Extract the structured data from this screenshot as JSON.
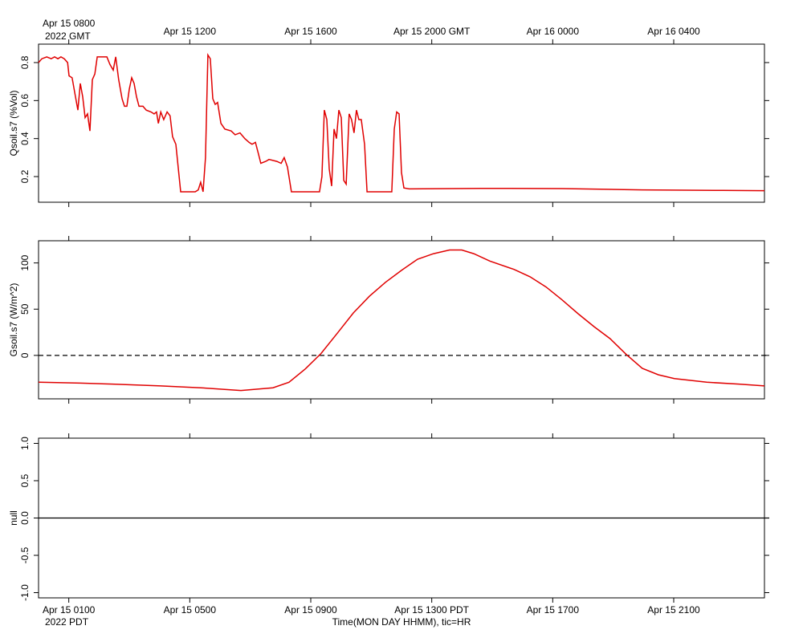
{
  "chart_data": [
    {
      "type": "line",
      "ylabel": "Qsoil.s7 (%Vol)",
      "color": "#e00000",
      "xlim": [
        0,
        24
      ],
      "ylim": [
        0.065,
        0.897
      ],
      "yticks": [
        0.2,
        0.4,
        0.6,
        0.8
      ],
      "xtick_side": "top",
      "x_year": "2022 GMT",
      "xticks": [
        {
          "value": 1,
          "label": "Apr 15 0800"
        },
        {
          "value": 5,
          "label": "Apr 15 1200"
        },
        {
          "value": 9,
          "label": "Apr 15 1600"
        },
        {
          "value": 13,
          "label": "Apr 15 2000 GMT"
        },
        {
          "value": 17,
          "label": "Apr 16 0000"
        },
        {
          "value": 21,
          "label": "Apr 16 0400"
        }
      ],
      "x": [
        0,
        0.11,
        0.27,
        0.42,
        0.53,
        0.64,
        0.74,
        0.85,
        0.96,
        1.01,
        1.11,
        1.22,
        1.3,
        1.38,
        1.46,
        1.54,
        1.62,
        1.7,
        1.78,
        1.86,
        1.94,
        2.26,
        2.36,
        2.47,
        2.55,
        2.65,
        2.76,
        2.84,
        2.92,
        3.0,
        3.08,
        3.16,
        3.24,
        3.32,
        3.45,
        3.56,
        3.72,
        3.82,
        3.9,
        3.96,
        4.04,
        4.14,
        4.25,
        4.35,
        4.43,
        4.54,
        4.7,
        5.18,
        5.28,
        5.36,
        5.44,
        5.52,
        5.6,
        5.68,
        5.76,
        5.84,
        5.92,
        6.03,
        6.16,
        6.37,
        6.5,
        6.66,
        6.82,
        6.96,
        7.06,
        7.17,
        7.27,
        7.35,
        7.51,
        7.62,
        7.88,
        8.02,
        8.12,
        8.23,
        8.36,
        9.29,
        9.37,
        9.45,
        9.53,
        9.61,
        9.69,
        9.77,
        9.85,
        9.93,
        10.01,
        10.09,
        10.17,
        10.27,
        10.35,
        10.43,
        10.51,
        10.59,
        10.67,
        10.78,
        10.86,
        11.68,
        11.76,
        11.84,
        11.92,
        12.0,
        12.08,
        12.26,
        14.65,
        17.31,
        19.96,
        22.62,
        24.0
      ],
      "values": [
        0.8,
        0.82,
        0.83,
        0.82,
        0.83,
        0.82,
        0.83,
        0.82,
        0.8,
        0.73,
        0.72,
        0.62,
        0.55,
        0.69,
        0.62,
        0.51,
        0.53,
        0.44,
        0.71,
        0.74,
        0.83,
        0.83,
        0.79,
        0.76,
        0.83,
        0.71,
        0.61,
        0.57,
        0.57,
        0.66,
        0.72,
        0.69,
        0.62,
        0.57,
        0.57,
        0.55,
        0.54,
        0.53,
        0.54,
        0.48,
        0.54,
        0.5,
        0.54,
        0.52,
        0.41,
        0.37,
        0.12,
        0.12,
        0.13,
        0.17,
        0.12,
        0.3,
        0.84,
        0.82,
        0.61,
        0.58,
        0.59,
        0.48,
        0.45,
        0.44,
        0.42,
        0.43,
        0.4,
        0.38,
        0.37,
        0.38,
        0.32,
        0.27,
        0.28,
        0.29,
        0.28,
        0.27,
        0.3,
        0.25,
        0.12,
        0.12,
        0.2,
        0.55,
        0.5,
        0.24,
        0.15,
        0.45,
        0.4,
        0.55,
        0.51,
        0.18,
        0.16,
        0.53,
        0.5,
        0.43,
        0.55,
        0.5,
        0.5,
        0.37,
        0.12,
        0.12,
        0.45,
        0.54,
        0.53,
        0.22,
        0.14,
        0.135,
        0.138,
        0.137,
        0.13,
        0.127,
        0.126
      ]
    },
    {
      "type": "line",
      "ylabel": "Gsoil.s7 (W/m^2)",
      "color": "#e00000",
      "zero_line": "dashed",
      "xlim": [
        0,
        24
      ],
      "ylim": [
        -47,
        124
      ],
      "yticks": [
        0,
        50,
        100
      ],
      "xticks": [
        1,
        5,
        9,
        13,
        17,
        21
      ],
      "x": [
        0,
        1.38,
        2.44,
        4.04,
        5.36,
        6.69,
        7.75,
        8.28,
        8.81,
        9.34,
        9.88,
        10.41,
        10.94,
        11.47,
        12.0,
        12.53,
        13.06,
        13.59,
        13.99,
        14.39,
        14.92,
        15.72,
        16.25,
        16.78,
        17.31,
        17.84,
        18.37,
        18.9,
        19.43,
        19.96,
        20.49,
        21.02,
        22.09,
        23.15,
        24
      ],
      "values": [
        -29,
        -30,
        -31,
        -33,
        -35,
        -38,
        -35,
        -29,
        -15,
        2,
        24,
        46,
        64,
        79,
        92,
        104,
        110,
        114,
        114,
        110,
        102,
        93,
        85,
        74,
        60,
        45,
        31,
        18,
        1,
        -14,
        -21,
        -25,
        -29,
        -31,
        -33
      ]
    },
    {
      "type": "line",
      "ylabel": "null",
      "zero_line": "solid",
      "xlim": [
        0,
        24
      ],
      "ylim": [
        -1.07,
        1.07
      ],
      "yticks": [
        {
          "value": 1,
          "label": "1.0"
        },
        {
          "value": 0.5,
          "label": "0.5"
        },
        {
          "value": 0,
          "label": "0.0"
        },
        {
          "value": -0.5,
          "label": "-0.5"
        },
        {
          "value": -1,
          "label": "-1.0"
        }
      ],
      "xtick_side": "bottom",
      "x_year": "2022 PDT",
      "xlabel": "Time(MON DAY HHMM), tic=HR",
      "xticks": [
        {
          "value": 1,
          "label": "Apr 15 0100"
        },
        {
          "value": 5,
          "label": "Apr 15 0500"
        },
        {
          "value": 9,
          "label": "Apr 15 0900"
        },
        {
          "value": 13,
          "label": "Apr 15 1300 PDT"
        },
        {
          "value": 17,
          "label": "Apr 15 1700"
        },
        {
          "value": 21,
          "label": "Apr 15 2100"
        }
      ]
    }
  ]
}
